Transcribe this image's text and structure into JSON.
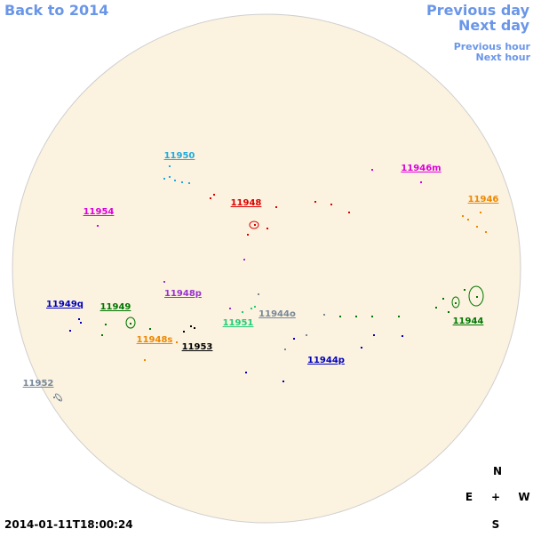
{
  "nav": {
    "back": "Back to 2014",
    "previous_day": "Previous day",
    "next_day": "Next day",
    "previous_hour": "Previous hour",
    "next_hour": "Next hour"
  },
  "timestamp": "2014-01-11T18:00:24",
  "compass": {
    "north": "N",
    "east": "E",
    "center": "+",
    "west": "W",
    "south": "S"
  },
  "regions": [
    {
      "label": "11950",
      "color": "#22aadd"
    },
    {
      "label": "11946m",
      "color": "#dd00dd"
    },
    {
      "label": "11946",
      "color": "#ee8800"
    },
    {
      "label": "11948",
      "color": "#dd0000"
    },
    {
      "label": "11954",
      "color": "#dd00dd"
    },
    {
      "label": "11948p",
      "color": "#9933cc"
    },
    {
      "label": "11949q",
      "color": "#0000bb"
    },
    {
      "label": "11949",
      "color": "#007700"
    },
    {
      "label": "11944o",
      "color": "#778899"
    },
    {
      "label": "11951",
      "color": "#22cc77"
    },
    {
      "label": "11944",
      "color": "#007700"
    },
    {
      "label": "11948s",
      "color": "#ee8800"
    },
    {
      "label": "11953",
      "color": "#000000"
    },
    {
      "label": "11944p",
      "color": "#0000bb"
    },
    {
      "label": "11952",
      "color": "#778899"
    }
  ]
}
